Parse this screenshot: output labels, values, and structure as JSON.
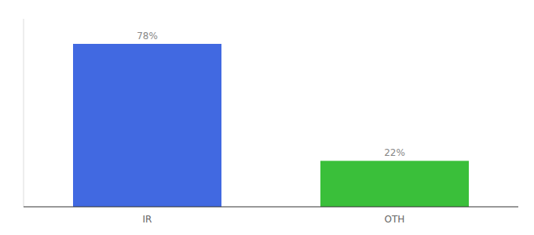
{
  "chart_data": {
    "type": "bar",
    "categories": [
      "IR",
      "OTH"
    ],
    "values": [
      78,
      22
    ],
    "value_labels": [
      "78%",
      "22%"
    ],
    "colors": [
      "#4169e1",
      "#3abf3a"
    ],
    "ylim": [
      0,
      90
    ],
    "data_labels": true,
    "tick_labels": "x",
    "grid": false
  }
}
